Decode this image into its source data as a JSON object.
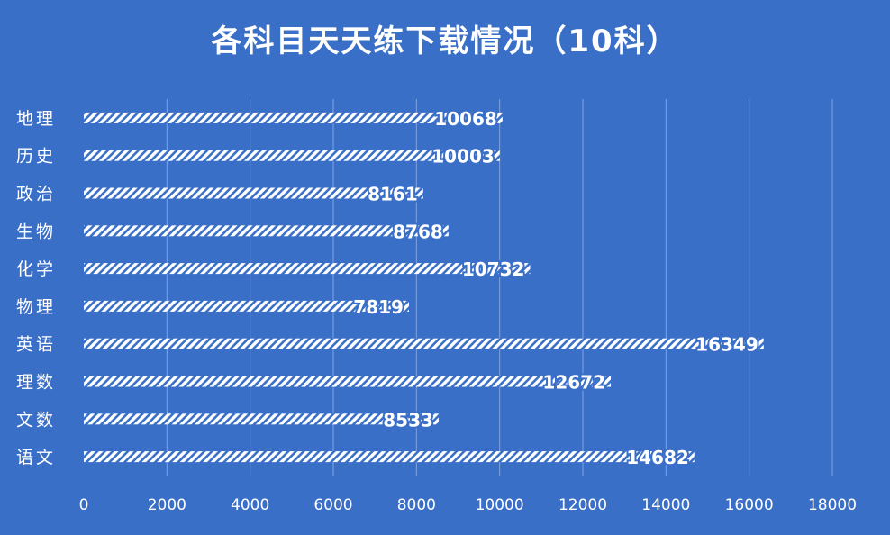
{
  "chart_data": {
    "type": "bar",
    "orientation": "horizontal",
    "title": "各科目天天练下载情况（10科）",
    "categories": [
      "地理",
      "历史",
      "政治",
      "生物",
      "化学",
      "物理",
      "英语",
      "理数",
      "文数",
      "语文"
    ],
    "values": [
      10068,
      10003,
      8161,
      8768,
      10732,
      7819,
      16349,
      12672,
      8533,
      14682
    ],
    "xlim": [
      0,
      18000
    ],
    "xticks": [
      0,
      2000,
      4000,
      6000,
      8000,
      10000,
      12000,
      14000,
      16000,
      18000
    ],
    "grid": "vertical",
    "data_labels": true,
    "legend": "none",
    "colors": {
      "background": "#3a6fc8",
      "bar_fill": "#ffffff",
      "bar_stripe_bg": "#3a6fc8",
      "text": "#ffffff",
      "grid": "#7fa4e0"
    }
  }
}
